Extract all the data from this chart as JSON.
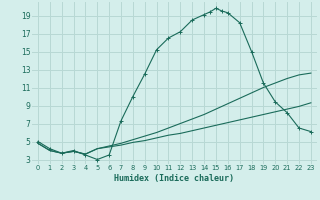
{
  "xlabel": "Humidex (Indice chaleur)",
  "bg_color": "#d4eeeb",
  "grid_color": "#b8d8d4",
  "line_color": "#1a6b5a",
  "xlim": [
    -0.5,
    23.5
  ],
  "ylim": [
    2.5,
    20.5
  ],
  "xticks": [
    0,
    1,
    2,
    3,
    4,
    5,
    6,
    7,
    8,
    9,
    10,
    11,
    12,
    13,
    14,
    15,
    16,
    17,
    18,
    19,
    20,
    21,
    22,
    23
  ],
  "yticks": [
    3,
    5,
    7,
    9,
    11,
    13,
    15,
    17,
    19
  ],
  "curve1_x": [
    0,
    1,
    2,
    3,
    4,
    5,
    6,
    7,
    8,
    9,
    10,
    11,
    12,
    13,
    14,
    14.5,
    15,
    15.5,
    16,
    17,
    18,
    19,
    20,
    21,
    22,
    23
  ],
  "curve1_y": [
    5,
    4.2,
    3.7,
    4.0,
    3.5,
    3.0,
    3.5,
    7.3,
    10.0,
    12.5,
    15.2,
    16.5,
    17.2,
    18.5,
    19.1,
    19.4,
    19.8,
    19.5,
    19.3,
    18.2,
    15.0,
    11.5,
    9.4,
    8.2,
    6.5,
    6.1
  ],
  "curve2_x": [
    0,
    1,
    2,
    3,
    4,
    5,
    6,
    7,
    8,
    9,
    10,
    11,
    12,
    13,
    14,
    15,
    16,
    17,
    18,
    19,
    20,
    21,
    22,
    23
  ],
  "curve2_y": [
    4.8,
    4.0,
    3.7,
    3.9,
    3.6,
    4.2,
    4.4,
    4.6,
    4.9,
    5.1,
    5.4,
    5.7,
    5.9,
    6.2,
    6.5,
    6.8,
    7.1,
    7.4,
    7.7,
    8.0,
    8.3,
    8.6,
    8.9,
    9.3
  ],
  "curve3_x": [
    0,
    1,
    2,
    3,
    4,
    5,
    6,
    7,
    8,
    9,
    10,
    11,
    12,
    13,
    14,
    15,
    16,
    17,
    18,
    19,
    20,
    21,
    22,
    23
  ],
  "curve3_y": [
    4.8,
    4.0,
    3.7,
    3.9,
    3.6,
    4.2,
    4.5,
    4.8,
    5.2,
    5.6,
    6.0,
    6.5,
    7.0,
    7.5,
    8.0,
    8.6,
    9.2,
    9.8,
    10.4,
    11.0,
    11.5,
    12.0,
    12.4,
    12.6
  ],
  "marker": "+"
}
